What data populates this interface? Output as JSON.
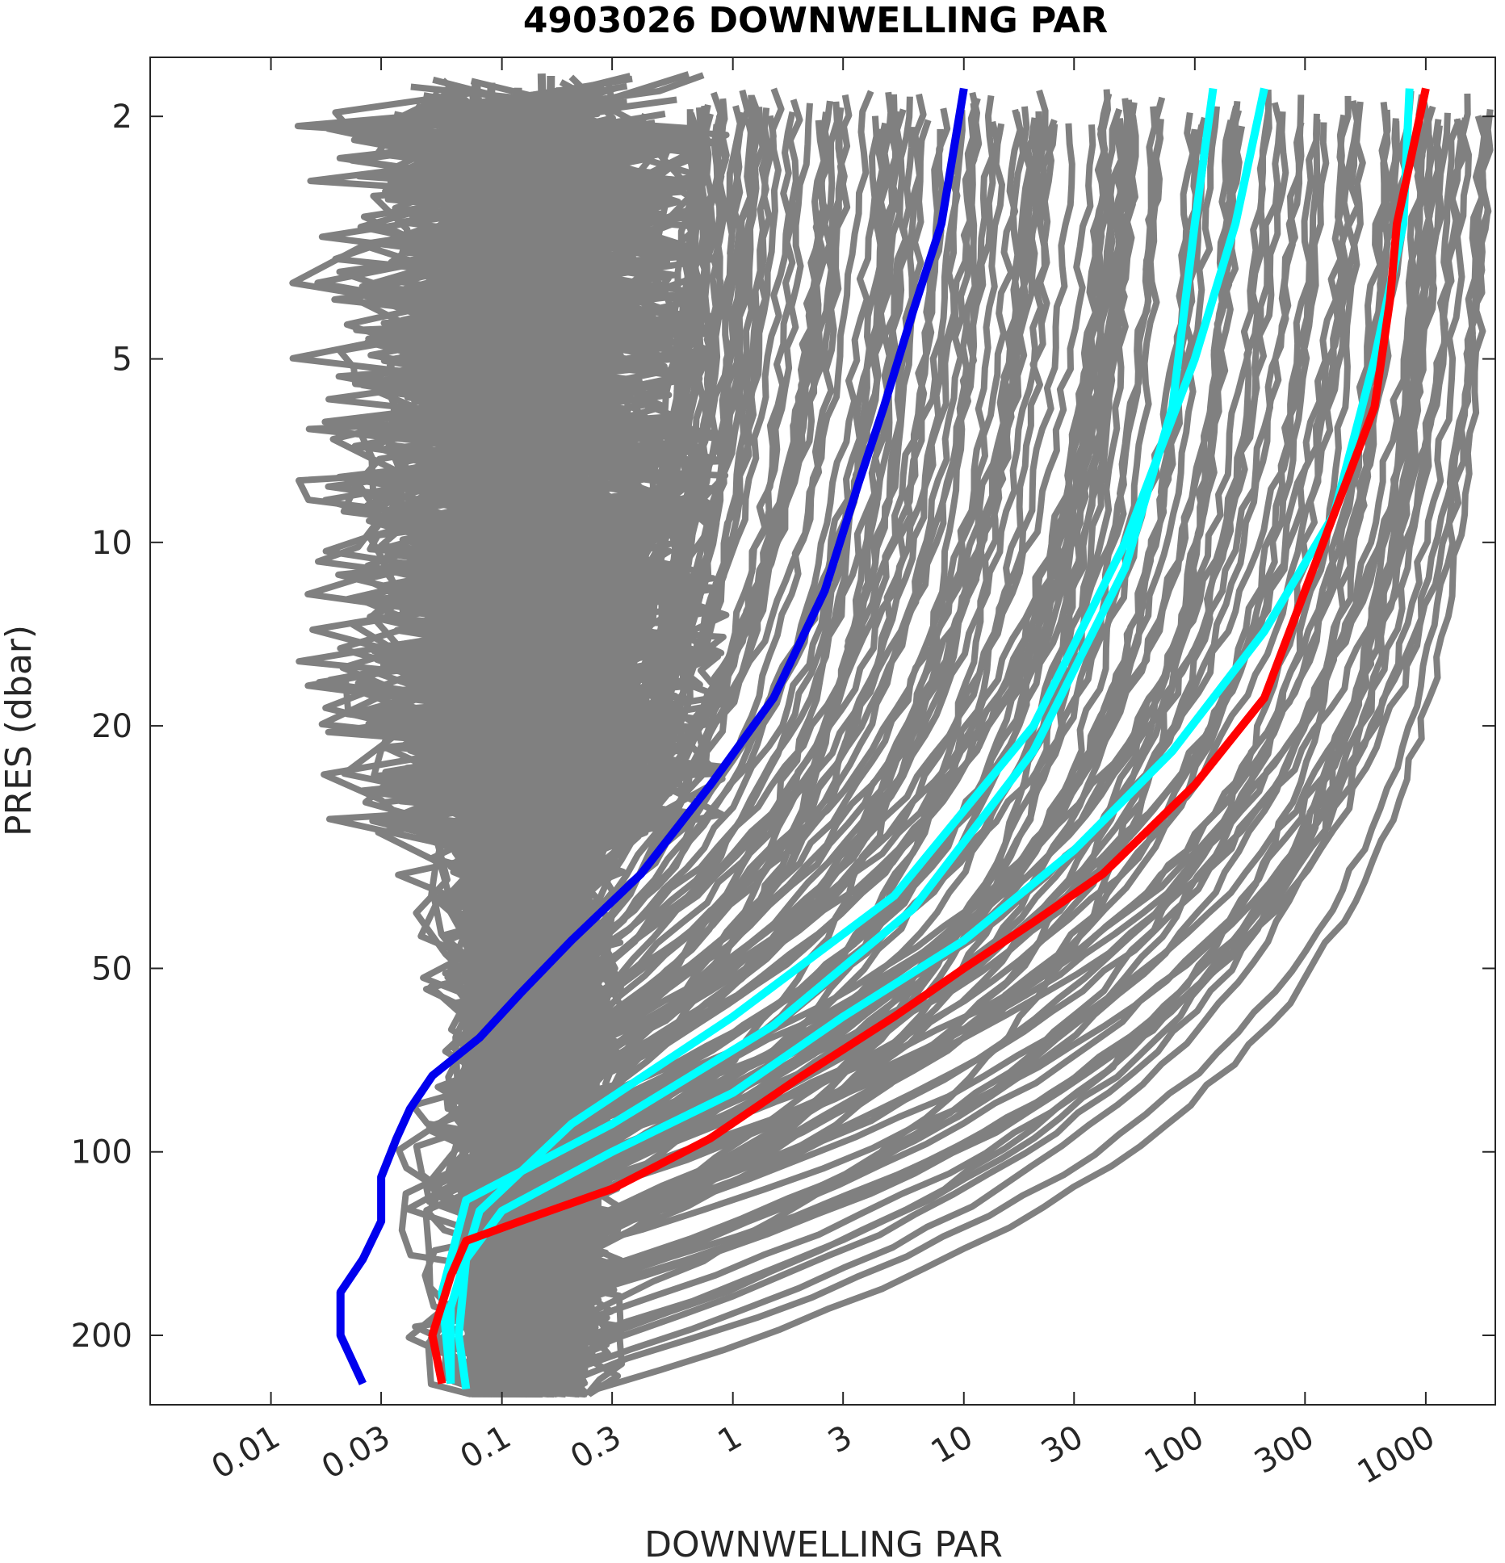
{
  "chart_data": {
    "type": "line",
    "title": "4903026  DOWNWELLING PAR",
    "xlabel": "DOWNWELLING PAR",
    "ylabel": "PRES (dbar)",
    "x_scale": "log",
    "y_scale": "log",
    "y_reversed": true,
    "xlim": [
      0.003,
      2000
    ],
    "ylim": [
      1.6,
      260
    ],
    "x_ticks": [
      0.01,
      0.03,
      0.1,
      0.3,
      1,
      3,
      10,
      30,
      100,
      300,
      1000
    ],
    "x_tick_labels": [
      "0.01",
      "0.03",
      "0.1",
      "0.3",
      "1",
      "3",
      "10",
      "30",
      "100",
      "300",
      "1000"
    ],
    "y_ticks": [
      2,
      5,
      10,
      20,
      50,
      100,
      200
    ],
    "y_tick_labels": [
      "2",
      "5",
      "10",
      "20",
      "50",
      "100",
      "200"
    ],
    "grid": false,
    "colors": {
      "other_profiles": "#808080",
      "recent_profiles": "#00ffff",
      "first_profile": "#0000ee",
      "last_profile": "#ff0000"
    },
    "series": [
      {
        "color": "#0000ee",
        "points": [
          [
            10,
            1.8
          ],
          [
            8,
            3
          ],
          [
            6,
            4.2
          ],
          [
            4.5,
            6
          ],
          [
            3.5,
            8
          ],
          [
            2.5,
            12
          ],
          [
            1.5,
            18
          ],
          [
            0.8,
            25
          ],
          [
            0.4,
            35
          ],
          [
            0.2,
            45
          ],
          [
            0.12,
            55
          ],
          [
            0.08,
            65
          ],
          [
            0.05,
            75
          ],
          [
            0.04,
            85
          ],
          [
            0.035,
            95
          ],
          [
            0.03,
            110
          ],
          [
            0.03,
            130
          ],
          [
            0.025,
            150
          ],
          [
            0.02,
            170
          ],
          [
            0.02,
            200
          ],
          [
            0.025,
            240
          ]
        ]
      },
      {
        "color": "#ff0000",
        "points": [
          [
            1000,
            1.8
          ],
          [
            750,
            3
          ],
          [
            700,
            4
          ],
          [
            600,
            6
          ],
          [
            450,
            8
          ],
          [
            300,
            12
          ],
          [
            200,
            18
          ],
          [
            100,
            25
          ],
          [
            40,
            35
          ],
          [
            20,
            42
          ],
          [
            10,
            50
          ],
          [
            5,
            60
          ],
          [
            2,
            75
          ],
          [
            0.8,
            95
          ],
          [
            0.3,
            115
          ],
          [
            0.12,
            130
          ],
          [
            0.07,
            140
          ],
          [
            0.06,
            160
          ],
          [
            0.05,
            200
          ],
          [
            0.055,
            240
          ]
        ]
      },
      {
        "color": "#00ffff",
        "points": [
          [
            850,
            1.8
          ],
          [
            800,
            3
          ],
          [
            600,
            5
          ],
          [
            400,
            9
          ],
          [
            200,
            14
          ],
          [
            80,
            22
          ],
          [
            30,
            32
          ],
          [
            10,
            45
          ],
          [
            3,
            60
          ],
          [
            1,
            80
          ],
          [
            0.3,
            100
          ],
          [
            0.1,
            125
          ],
          [
            0.07,
            150
          ],
          [
            0.065,
            200
          ],
          [
            0.07,
            245
          ]
        ]
      },
      {
        "color": "#00ffff",
        "points": [
          [
            200,
            1.8
          ],
          [
            150,
            3
          ],
          [
            100,
            5
          ],
          [
            50,
            10
          ],
          [
            20,
            20
          ],
          [
            5,
            38
          ],
          [
            1,
            60
          ],
          [
            0.2,
            90
          ],
          [
            0.08,
            125
          ],
          [
            0.06,
            180
          ],
          [
            0.06,
            240
          ]
        ]
      },
      {
        "color": "#00ffff",
        "points": [
          [
            120,
            1.8
          ],
          [
            100,
            3
          ],
          [
            80,
            6
          ],
          [
            50,
            11
          ],
          [
            20,
            22
          ],
          [
            6,
            40
          ],
          [
            1.5,
            62
          ],
          [
            0.3,
            90
          ],
          [
            0.07,
            120
          ],
          [
            0.055,
            170
          ],
          [
            0.06,
            240
          ]
        ]
      }
    ]
  }
}
